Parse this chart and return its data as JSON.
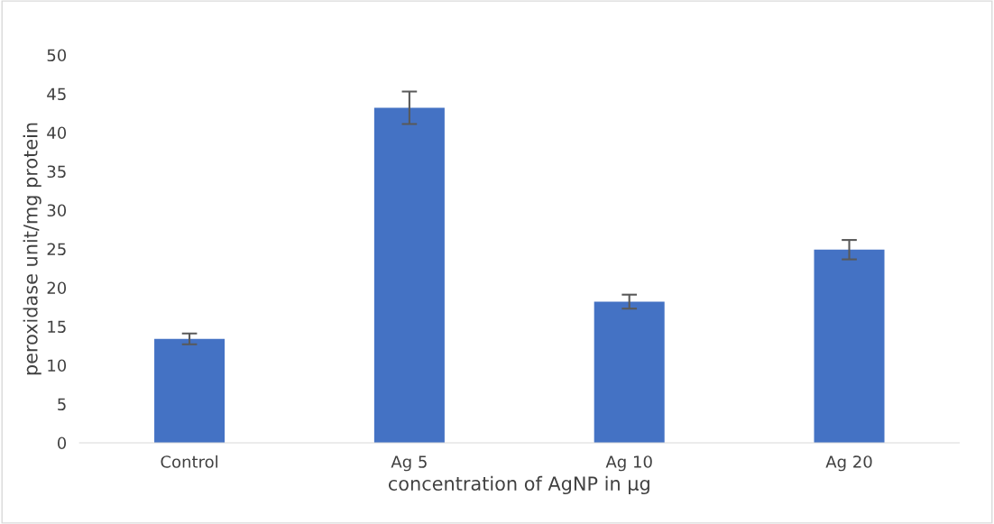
{
  "chart_data": {
    "type": "bar",
    "xlabel": "concentration of AgNP in µg",
    "ylabel": "peroxidase unit/mg protein",
    "categories": [
      "Control",
      "Ag 5",
      "Ag 10",
      "Ag 20"
    ],
    "values": [
      13.4,
      43.2,
      18.2,
      24.9
    ],
    "errors": [
      0.7,
      2.1,
      0.9,
      1.25
    ],
    "color": "#4472c4",
    "ylim": [
      0,
      50
    ],
    "yticks": [
      0,
      5,
      10,
      15,
      20,
      25,
      30,
      35,
      40,
      45,
      50
    ],
    "grid": false,
    "legend": false
  }
}
